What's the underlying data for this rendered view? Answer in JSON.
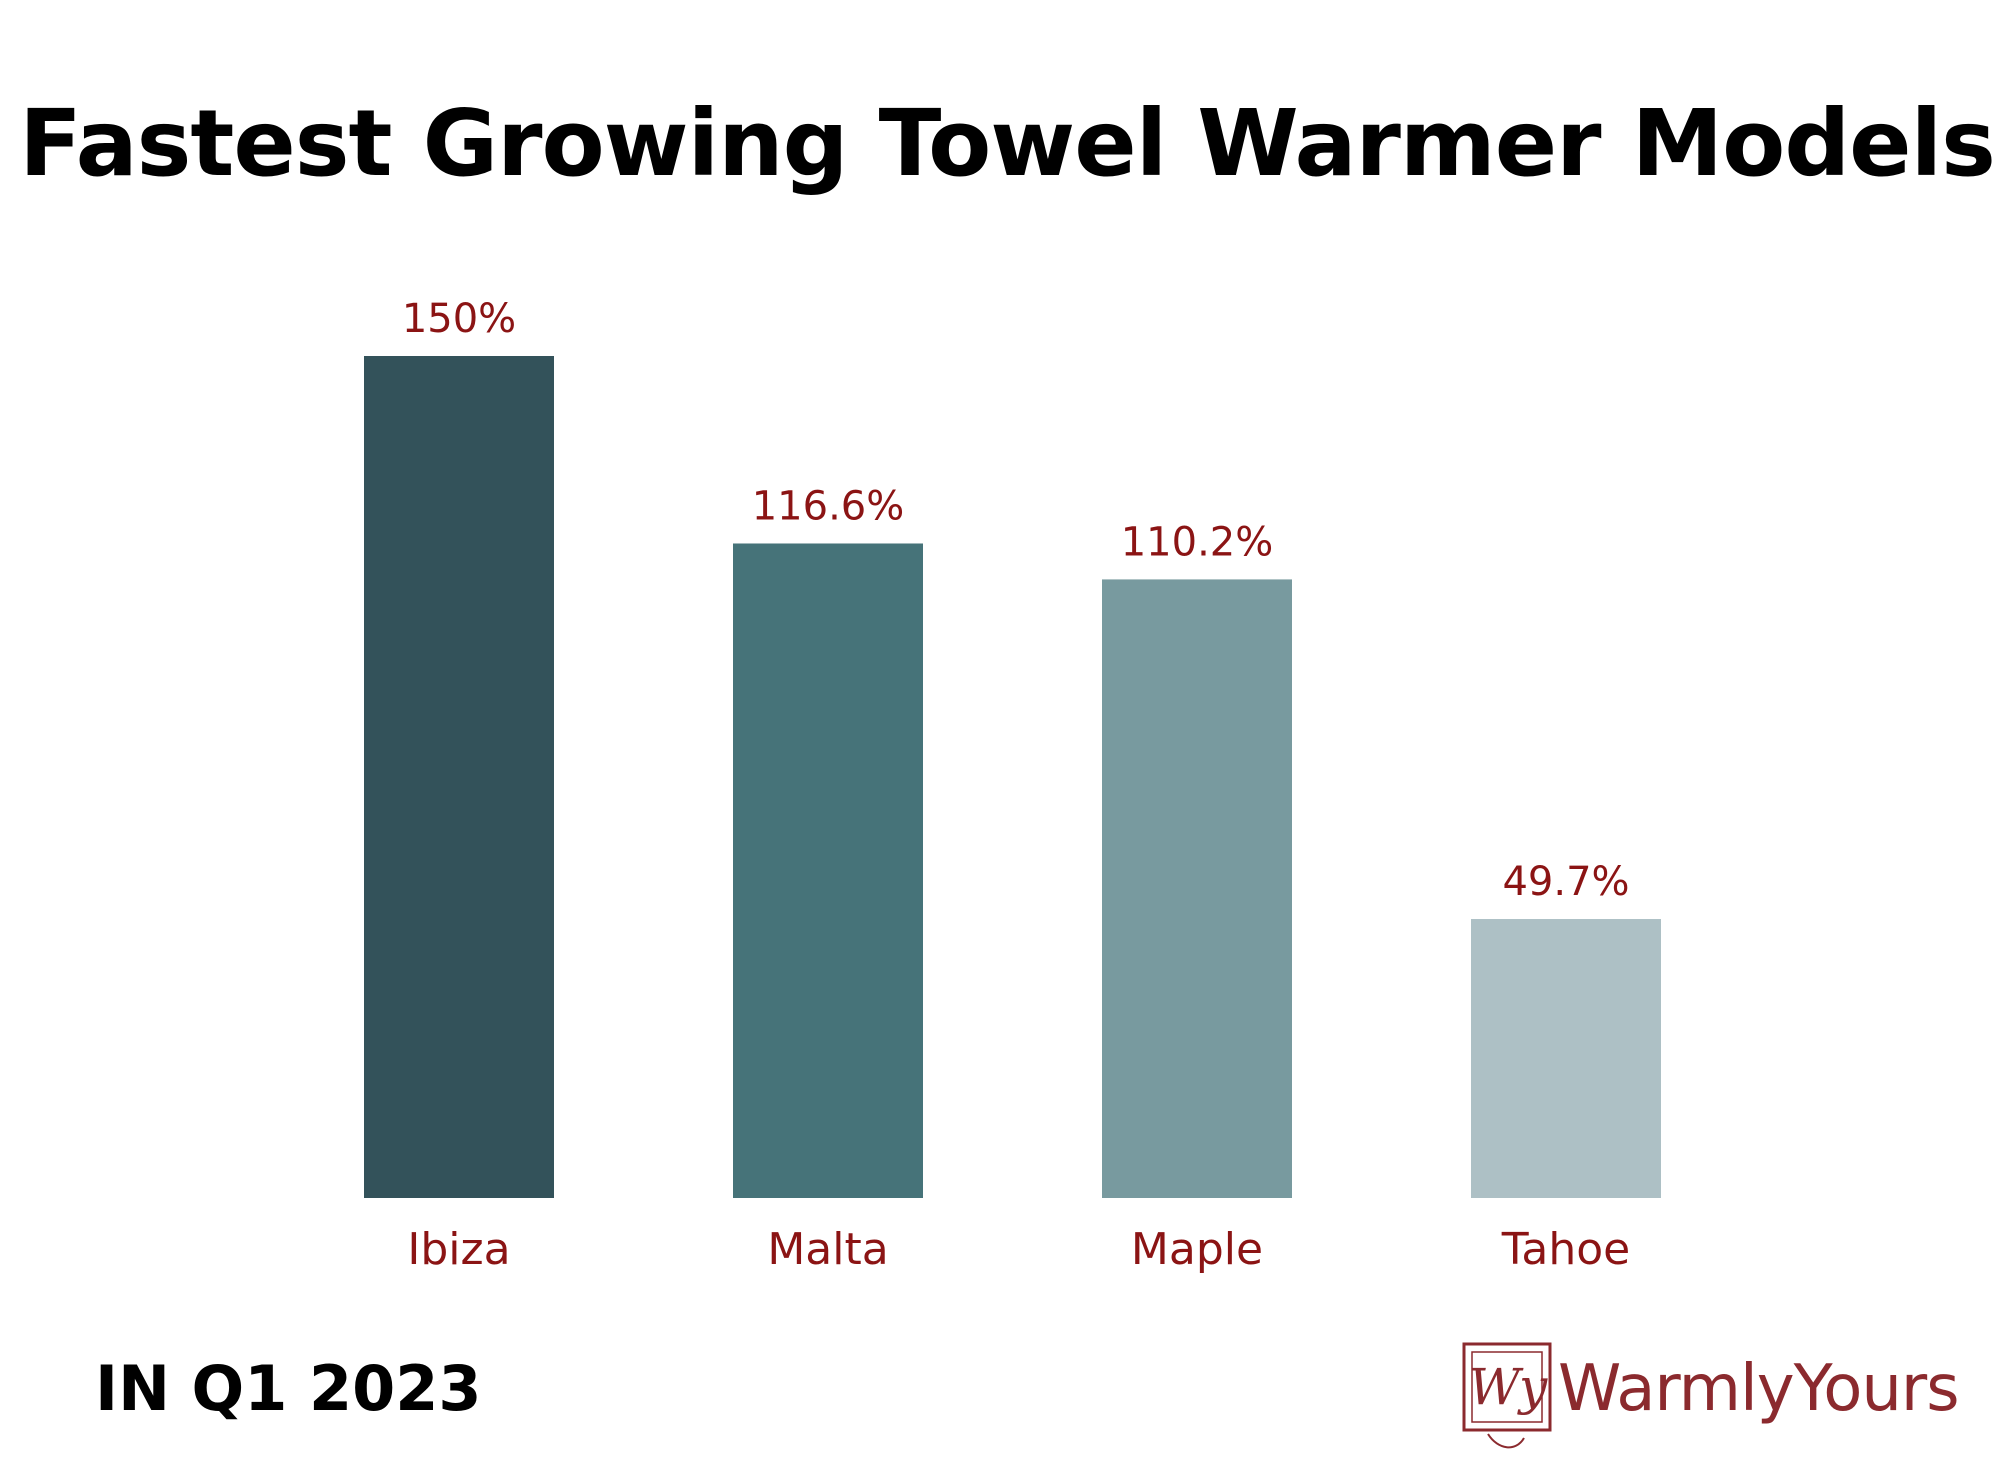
{
  "chart_data": {
    "type": "bar",
    "title": "Fastest Growing Towel Warmer Models",
    "categories": [
      "Ibiza",
      "Malta",
      "Maple",
      "Tahoe"
    ],
    "values": [
      150,
      116.6,
      110.2,
      49.7
    ],
    "value_labels": [
      "150%",
      "116.6%",
      "110.2%",
      "49.7%"
    ],
    "bar_colors": [
      "#33525a",
      "#467379",
      "#789a9f",
      "#adc0c5"
    ],
    "label_color": "#8b1414",
    "xlabel": "",
    "ylabel": "",
    "ylim": [
      0,
      150
    ],
    "grid": false,
    "legend": "none"
  },
  "footer": {
    "period": "IN Q1 2023"
  },
  "brand": {
    "name": "WarmlyYours",
    "mark_text": "Wy",
    "color": "#8b2a2e"
  }
}
